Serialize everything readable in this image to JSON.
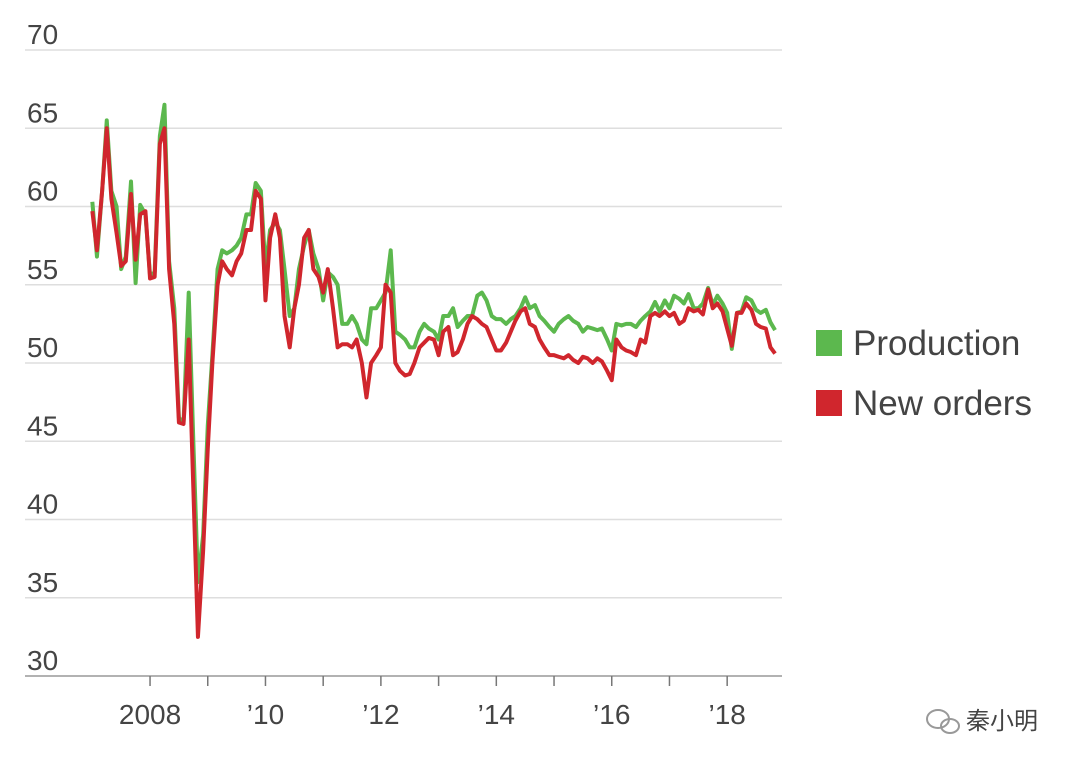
{
  "chart_data": {
    "type": "line",
    "xlim": [
      2005.92,
      2018.95
    ],
    "ylim": [
      30,
      70
    ],
    "yticks": [
      30,
      35,
      40,
      45,
      50,
      55,
      60,
      65,
      70
    ],
    "xticks": [
      {
        "value": 2008,
        "label": "2008"
      },
      {
        "value": 2010,
        "label": "’10"
      },
      {
        "value": 2012,
        "label": "’12"
      },
      {
        "value": 2014,
        "label": "’14"
      },
      {
        "value": 2016,
        "label": "’16"
      },
      {
        "value": 2018,
        "label": "’18"
      }
    ],
    "minor_xticks": [
      2009,
      2011,
      2013,
      2015,
      2017
    ],
    "grid": true,
    "legend": "right",
    "watermark": "秦小明",
    "x": [
      2007.0,
      2007.08,
      2007.17,
      2007.25,
      2007.33,
      2007.42,
      2007.5,
      2007.58,
      2007.67,
      2007.75,
      2007.83,
      2007.92,
      2008.0,
      2008.08,
      2008.17,
      2008.25,
      2008.33,
      2008.42,
      2008.5,
      2008.58,
      2008.67,
      2008.75,
      2008.83,
      2008.92,
      2009.0,
      2009.08,
      2009.17,
      2009.25,
      2009.33,
      2009.42,
      2009.5,
      2009.58,
      2009.67,
      2009.75,
      2009.83,
      2009.92,
      2010.0,
      2010.08,
      2010.17,
      2010.25,
      2010.33,
      2010.42,
      2010.5,
      2010.58,
      2010.67,
      2010.75,
      2010.83,
      2010.92,
      2011.0,
      2011.08,
      2011.17,
      2011.25,
      2011.33,
      2011.42,
      2011.5,
      2011.58,
      2011.67,
      2011.75,
      2011.83,
      2011.92,
      2012.0,
      2012.08,
      2012.17,
      2012.25,
      2012.33,
      2012.42,
      2012.5,
      2012.58,
      2012.67,
      2012.75,
      2012.83,
      2012.92,
      2013.0,
      2013.08,
      2013.17,
      2013.25,
      2013.33,
      2013.42,
      2013.5,
      2013.58,
      2013.67,
      2013.75,
      2013.83,
      2013.92,
      2014.0,
      2014.08,
      2014.17,
      2014.25,
      2014.33,
      2014.42,
      2014.5,
      2014.58,
      2014.67,
      2014.75,
      2014.83,
      2014.92,
      2015.0,
      2015.08,
      2015.17,
      2015.25,
      2015.33,
      2015.42,
      2015.5,
      2015.58,
      2015.67,
      2015.75,
      2015.83,
      2015.92,
      2016.0,
      2016.08,
      2016.17,
      2016.25,
      2016.33,
      2016.42,
      2016.5,
      2016.58,
      2016.67,
      2016.75,
      2016.83,
      2016.92,
      2017.0,
      2017.08,
      2017.17,
      2017.25,
      2017.33,
      2017.42,
      2017.5,
      2017.58,
      2017.67,
      2017.75,
      2017.83,
      2017.92,
      2018.0,
      2018.08,
      2018.17,
      2018.25,
      2018.33,
      2018.42,
      2018.5,
      2018.58,
      2018.67,
      2018.75,
      2018.83
    ],
    "series": [
      {
        "name": "Production",
        "color": "#5cb84e",
        "values": [
          60.3,
          56.8,
          61,
          65.5,
          61,
          60,
          56,
          56.8,
          61.6,
          55.1,
          60.1,
          59.5,
          55.6,
          55.8,
          64.5,
          66.5,
          56.5,
          53.5,
          46.5,
          46.2,
          54.5,
          45,
          36,
          39,
          46,
          50.5,
          56,
          57.2,
          57,
          57.2,
          57.5,
          58,
          59.5,
          59.5,
          61.5,
          61,
          56,
          58.5,
          59,
          58.5,
          56,
          53,
          53.5,
          56,
          57.5,
          58.5,
          57,
          56,
          54,
          55.8,
          55.5,
          55,
          52.5,
          52.5,
          53,
          52.5,
          51.5,
          51.2,
          53.5,
          53.5,
          54,
          54.5,
          57.2,
          52,
          51.8,
          51.5,
          51,
          51,
          52,
          52.5,
          52.2,
          52,
          51.5,
          53,
          53,
          53.5,
          52.3,
          52.7,
          53,
          53,
          54.3,
          54.5,
          54,
          53,
          52.8,
          52.8,
          52.5,
          52.8,
          53,
          53.5,
          54.2,
          53.5,
          53.7,
          53,
          52.7,
          52.3,
          52,
          52.5,
          52.8,
          53,
          52.7,
          52.5,
          52,
          52.3,
          52.2,
          52.1,
          52.2,
          51.5,
          50.8,
          52.5,
          52.4,
          52.5,
          52.5,
          52.3,
          52.7,
          53,
          53.3,
          53.9,
          53.3,
          54,
          53.5,
          54.3,
          54.1,
          53.8,
          54.4,
          53.5,
          53.5,
          53.8,
          54.8,
          53.7,
          54.3,
          53.8,
          53.2,
          50.9,
          53.2,
          53.3,
          54.2,
          54,
          53.4,
          53.2,
          53.4,
          52.6,
          52.1
        ]
      },
      {
        "name": "New orders",
        "color": "#d0262d",
        "values": [
          59.7,
          57.2,
          61,
          65,
          60.5,
          58.3,
          56.2,
          56.5,
          60.8,
          56.6,
          59.5,
          59.7,
          55.4,
          55.5,
          64,
          65,
          56,
          52.5,
          46.2,
          46.1,
          51.5,
          42,
          32.5,
          38,
          44.5,
          50,
          55,
          56.5,
          56,
          55.6,
          56.5,
          57,
          58.5,
          58.5,
          61,
          60.5,
          54,
          58,
          59.5,
          58,
          53,
          51,
          53.5,
          55,
          58,
          58.5,
          56,
          55.5,
          54.5,
          56,
          53.5,
          51,
          51.2,
          51.2,
          51,
          51.5,
          50,
          47.8,
          50,
          50.5,
          51,
          55,
          54.5,
          50,
          49.5,
          49.2,
          49.3,
          50,
          51,
          51.3,
          51.6,
          51.5,
          50.5,
          52,
          52.3,
          50.5,
          50.7,
          51.5,
          52.5,
          53,
          52.8,
          52.5,
          52.3,
          51.5,
          50.8,
          50.8,
          51.3,
          52,
          52.7,
          53.3,
          53.5,
          52.5,
          52.3,
          51.5,
          51,
          50.5,
          50.5,
          50.4,
          50.3,
          50.5,
          50.2,
          50,
          50.4,
          50.3,
          50,
          50.3,
          50.1,
          49.5,
          48.9,
          51.5,
          51,
          50.8,
          50.7,
          50.5,
          51.5,
          51.3,
          53,
          53.2,
          53,
          53.3,
          53,
          53.2,
          52.5,
          52.7,
          53.5,
          53.3,
          53.4,
          53.1,
          54.7,
          53.5,
          53.8,
          53.3,
          52.2,
          51.1,
          53.2,
          53.2,
          53.8,
          53.4,
          52.5,
          52.3,
          52.2,
          51,
          50.6
        ]
      }
    ]
  }
}
